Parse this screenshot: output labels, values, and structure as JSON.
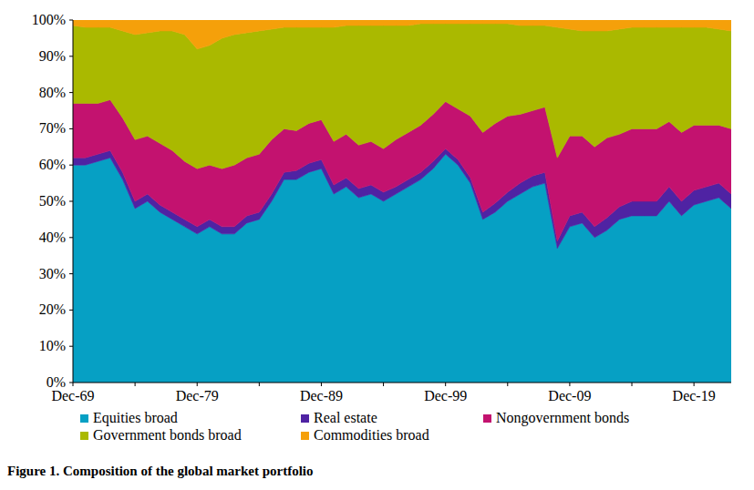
{
  "chart_data": {
    "type": "area",
    "stacked": true,
    "title": "Figure 1. Composition of the global market portfolio",
    "legend": "bottom",
    "grid": false,
    "categories": [
      "Dec-69",
      null,
      null,
      null,
      null,
      null,
      null,
      null,
      null,
      null,
      "Dec-79",
      null,
      null,
      null,
      null,
      null,
      null,
      null,
      null,
      null,
      "Dec-89",
      null,
      null,
      null,
      null,
      null,
      null,
      null,
      null,
      null,
      "Dec-99",
      null,
      null,
      null,
      null,
      null,
      null,
      null,
      null,
      null,
      "Dec-09",
      null,
      null,
      null,
      null,
      null,
      null,
      null,
      null,
      null,
      "Dec-19",
      null,
      null,
      null
    ],
    "ylim": [
      0,
      100
    ],
    "yticks": [
      {
        "value": 0,
        "label": "0%"
      },
      {
        "value": 10,
        "label": "10%"
      },
      {
        "value": 20,
        "label": "20%"
      },
      {
        "value": 30,
        "label": "30%"
      },
      {
        "value": 40,
        "label": "40%"
      },
      {
        "value": 50,
        "label": "50%"
      },
      {
        "value": 60,
        "label": "60%"
      },
      {
        "value": 70,
        "label": "70%"
      },
      {
        "value": 80,
        "label": "80%"
      },
      {
        "value": 90,
        "label": "90%"
      },
      {
        "value": 100,
        "label": "100%"
      }
    ],
    "series": [
      {
        "name": "Equities broad",
        "color": "#06a0c4",
        "values": [
          60,
          60,
          61,
          62,
          56,
          48,
          50,
          47,
          45,
          43,
          41,
          43,
          41,
          41,
          44,
          45,
          50,
          56,
          56,
          58,
          59,
          52,
          54,
          51,
          52,
          50,
          52,
          54,
          56,
          59,
          63,
          60,
          55,
          45,
          47,
          50,
          52,
          54,
          55,
          37,
          43,
          44,
          40,
          42,
          45,
          46,
          46,
          46,
          50,
          46,
          49,
          50,
          51,
          48
        ]
      },
      {
        "name": "Real estate",
        "color": "#4f23a3",
        "values": [
          2,
          2,
          2,
          2,
          2,
          2,
          2,
          2,
          2,
          2,
          2,
          2,
          2,
          2,
          2,
          2,
          2,
          2,
          2.5,
          2.5,
          2.5,
          2.5,
          2.5,
          2.5,
          2.5,
          2.5,
          2,
          2,
          2,
          2,
          1.5,
          1.5,
          1.5,
          2,
          2.5,
          2.5,
          3,
          3,
          3,
          2,
          3,
          3,
          3,
          3.5,
          3.5,
          4,
          4,
          4,
          4,
          4,
          4,
          4,
          4,
          4
        ]
      },
      {
        "name": "Nongovernment bonds",
        "color": "#c3126f",
        "values": [
          15,
          15,
          14,
          14,
          15,
          17,
          16,
          17,
          17,
          16,
          16,
          15,
          16,
          17,
          16,
          16,
          15,
          12,
          11,
          11,
          11,
          12,
          12,
          12,
          12,
          12,
          13,
          13,
          13,
          13,
          13,
          14,
          17,
          22,
          22,
          21,
          19,
          18,
          18,
          23,
          22,
          21,
          22,
          22,
          20,
          20,
          20,
          20,
          18,
          19,
          18,
          17,
          16,
          18
        ]
      },
      {
        "name": "Government bonds broad",
        "color": "#aab900",
        "values": [
          21.5,
          21,
          21,
          20,
          24,
          29,
          28.5,
          31,
          33,
          35,
          33,
          33,
          36,
          36,
          34.5,
          34,
          30.5,
          28,
          28.5,
          26.5,
          25.5,
          31.5,
          30,
          33,
          32,
          34,
          31.5,
          29.5,
          28,
          25,
          21.5,
          23.5,
          25.5,
          30,
          27.5,
          25.5,
          24.5,
          23.5,
          22.5,
          36,
          29.5,
          29,
          32,
          29.5,
          29,
          28,
          28,
          28,
          26,
          29,
          27,
          27,
          26.5,
          27
        ]
      },
      {
        "name": "Commodities broad",
        "color": "#f5a00a",
        "values": [
          1.5,
          2,
          2,
          2,
          3,
          4,
          3.5,
          3,
          3,
          4,
          8,
          7,
          5,
          4,
          3.5,
          3,
          2.5,
          2,
          2,
          2,
          2,
          2,
          1.5,
          1.5,
          1.5,
          1.5,
          1.5,
          1.5,
          1,
          1,
          1,
          1,
          1,
          1,
          1,
          1,
          1.5,
          1.5,
          1.5,
          2,
          2.5,
          3,
          3,
          3,
          2.5,
          2,
          2,
          2,
          2,
          2,
          2,
          2,
          2.5,
          3
        ]
      }
    ]
  }
}
